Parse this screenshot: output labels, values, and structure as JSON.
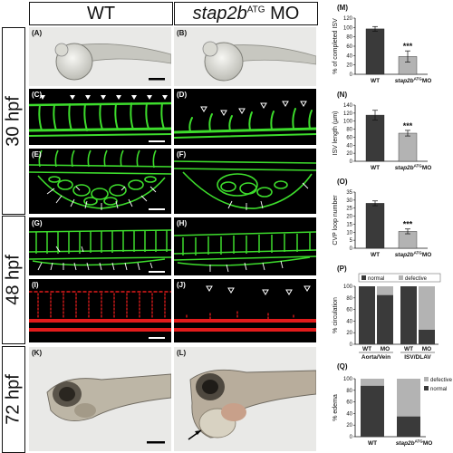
{
  "headers": {
    "wt": "WT",
    "mo_gene": "stap2b",
    "mo_sup": "ATG",
    "mo_suffix": " MO"
  },
  "stages": [
    "30 hpf",
    "48 hpf",
    "72 hpf"
  ],
  "panels": {
    "A": "(A)",
    "B": "(B)",
    "C": "(C)",
    "D": "(D)",
    "E": "(E)",
    "F": "(F)",
    "G": "(G)",
    "H": "(H)",
    "I": "(I)",
    "J": "(J)",
    "K": "(K)",
    "L": "(L)"
  },
  "graph_labels": {
    "M": "(M)",
    "N": "(N)",
    "O": "(O)",
    "P": "(P)",
    "Q": "(Q)"
  },
  "colors": {
    "bar_dark": "#3a3a3a",
    "bar_light": "#b3b3b3",
    "vessel_green": "#3ddc2c",
    "vessel_red": "#e21b1b"
  },
  "chart_data": [
    {
      "id": "M",
      "type": "bar",
      "ylabel": "% of completed ISV",
      "categories": [
        "WT",
        "stap2b^ATG MO"
      ],
      "values": [
        97,
        38
      ],
      "errors": [
        5,
        12
      ],
      "ylim": [
        0,
        120
      ],
      "yticks": [
        0,
        20,
        40,
        60,
        80,
        100,
        120
      ],
      "annotations": [
        {
          "category": "stap2b^ATG MO",
          "text": "***"
        }
      ]
    },
    {
      "id": "N",
      "type": "bar",
      "ylabel": "ISV length (µm)",
      "categories": [
        "WT",
        "stap2b^ATG MO"
      ],
      "values": [
        115,
        70
      ],
      "errors": [
        12,
        7
      ],
      "ylim": [
        0,
        140
      ],
      "yticks": [
        0,
        20,
        40,
        60,
        80,
        100,
        120,
        140
      ],
      "annotations": [
        {
          "category": "stap2b^ATG MO",
          "text": "***"
        }
      ]
    },
    {
      "id": "O",
      "type": "bar",
      "ylabel": "CVP loop number",
      "categories": [
        "WT",
        "stap2b^ATG MO"
      ],
      "values": [
        28,
        10.5
      ],
      "errors": [
        1.5,
        1.5
      ],
      "ylim": [
        0,
        35
      ],
      "yticks": [
        0,
        5,
        10,
        15,
        20,
        25,
        30,
        35
      ],
      "annotations": [
        {
          "category": "stap2b^ATG MO",
          "text": "***"
        }
      ]
    },
    {
      "id": "P",
      "type": "bar",
      "stacked": true,
      "percent": true,
      "ylabel": "% circulation",
      "legend": [
        "normal",
        "defective"
      ],
      "categories": [
        "WT",
        "MO",
        "WT",
        "MO"
      ],
      "groups": [
        "Aorta/Vein",
        "ISV/DLAV"
      ],
      "series": [
        {
          "name": "normal",
          "values": [
            100,
            85,
            100,
            25
          ]
        },
        {
          "name": "defective",
          "values": [
            0,
            15,
            0,
            75
          ]
        }
      ],
      "ylim": [
        0,
        100
      ],
      "yticks": [
        0,
        20,
        40,
        60,
        80,
        100
      ]
    },
    {
      "id": "Q",
      "type": "bar",
      "stacked": true,
      "percent": true,
      "ylabel": "% edema",
      "legend": [
        "defective",
        "normal"
      ],
      "categories": [
        "WT",
        "stap2b^ATG MO"
      ],
      "series": [
        {
          "name": "normal",
          "values": [
            88,
            35
          ]
        },
        {
          "name": "defective",
          "values": [
            12,
            65
          ]
        }
      ],
      "ylim": [
        0,
        100
      ],
      "yticks": [
        0,
        20,
        40,
        60,
        80,
        100
      ]
    }
  ]
}
